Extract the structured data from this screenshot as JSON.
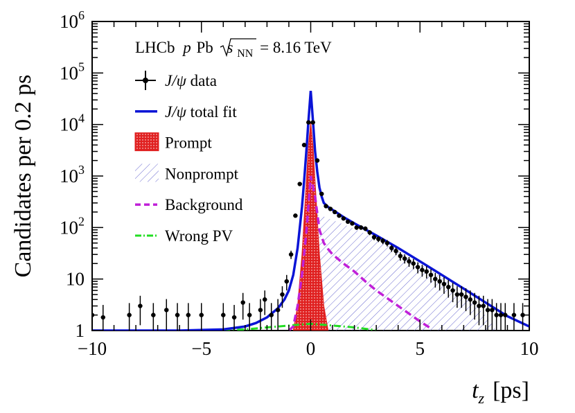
{
  "chart_data": {
    "type": "scatter",
    "title": "LHCb pPb √sNN = 8.16 TeV",
    "header": {
      "experiment": "LHCb",
      "system_a": "p",
      "system_b": "Pb",
      "energy_prefix": "s",
      "energy_subscript": "NN",
      "energy_value": "= 8.16 TeV"
    },
    "xlabel": {
      "symbol": "t",
      "subscript": "z",
      "unit": "[ps]"
    },
    "ylabel": "Candidates per 0.2 ps",
    "xlim": [
      -10,
      10
    ],
    "ylim": [
      1,
      1000000
    ],
    "yscale": "log",
    "x_ticks": [
      {
        "value": -10,
        "label": "−10"
      },
      {
        "value": -5,
        "label": "−5"
      },
      {
        "value": 0,
        "label": "0"
      },
      {
        "value": 5,
        "label": "5"
      },
      {
        "value": 10,
        "label": "10"
      }
    ],
    "y_ticks": [
      {
        "value": 1,
        "base": "1",
        "exp": ""
      },
      {
        "value": 10,
        "base": "10",
        "exp": ""
      },
      {
        "value": 100,
        "base": "10",
        "exp": "2"
      },
      {
        "value": 1000,
        "base": "10",
        "exp": "3"
      },
      {
        "value": 10000,
        "base": "10",
        "exp": "4"
      },
      {
        "value": 100000,
        "base": "10",
        "exp": "5"
      },
      {
        "value": 1000000,
        "base": "10",
        "exp": "6"
      }
    ],
    "legend": [
      {
        "key": "data",
        "prefix": "J/ψ",
        "label": " data",
        "style": "marker"
      },
      {
        "key": "total",
        "prefix": "J/ψ",
        "label": " total fit",
        "style": "line"
      },
      {
        "key": "prompt",
        "prefix": "",
        "label": "Prompt",
        "style": "fill-red"
      },
      {
        "key": "nonprompt",
        "prefix": "",
        "label": "Nonprompt",
        "style": "hatch"
      },
      {
        "key": "background",
        "prefix": "",
        "label": "Background",
        "style": "dash"
      },
      {
        "key": "wrongpv",
        "prefix": "",
        "label": "Wrong PV",
        "style": "dashdot"
      }
    ],
    "colors": {
      "total": "#0a14d6",
      "prompt": "#e02020",
      "nonprompt": "#6a6ad0",
      "background": "#c020d8",
      "wrongpv": "#22dd22",
      "data": "#000000"
    },
    "data": {
      "x": [
        -10,
        -9.5,
        -8.3,
        -7.8,
        -7.2,
        -6.6,
        -6.1,
        -5.6,
        -5.0,
        -4.0,
        -3.5,
        -3.1,
        -2.8,
        -2.3,
        -2.1,
        -1.8,
        -1.5,
        -1.3,
        -1.1,
        -0.9,
        -0.7,
        -0.5,
        -0.3,
        -0.1,
        0.1,
        0.3,
        0.5,
        0.7,
        0.9,
        1.1,
        1.3,
        1.5,
        1.7,
        1.9,
        2.1,
        2.3,
        2.5,
        2.7,
        2.9,
        3.1,
        3.3,
        3.5,
        3.7,
        3.9,
        4.1,
        4.3,
        4.5,
        4.7,
        4.9,
        5.1,
        5.3,
        5.5,
        5.7,
        5.9,
        6.1,
        6.3,
        6.5,
        6.7,
        6.9,
        7.1,
        7.3,
        7.5,
        7.7,
        7.9,
        8.1,
        8.3,
        8.5,
        8.7,
        8.9,
        9.3,
        9.7
      ],
      "y": [
        2,
        1.8,
        2,
        3,
        2,
        2.5,
        2,
        2,
        2,
        2,
        1.8,
        3.5,
        2,
        2.5,
        4,
        2,
        2.5,
        5,
        9,
        30,
        170,
        700,
        4000,
        11000,
        11000,
        2000,
        450,
        260,
        230,
        200,
        170,
        150,
        130,
        120,
        100,
        100,
        95,
        80,
        65,
        60,
        55,
        50,
        40,
        35,
        28,
        25,
        22,
        20,
        17,
        15,
        14,
        12,
        10,
        9,
        8,
        7,
        6,
        5,
        5,
        4.5,
        4,
        3.5,
        3,
        3,
        2.5,
        2.5,
        2,
        2,
        2,
        2,
        2
      ]
    },
    "total_fit": {
      "x": [
        -10,
        -8,
        -6,
        -4,
        -3,
        -2.5,
        -2,
        -1.5,
        -1.2,
        -1,
        -0.8,
        -0.6,
        -0.4,
        -0.3,
        -0.2,
        -0.1,
        0,
        0.1,
        0.2,
        0.3,
        0.4,
        0.5,
        0.6,
        0.8,
        1,
        1.5,
        2,
        3,
        4,
        5,
        6,
        7,
        8,
        9,
        10
      ],
      "y": [
        1,
        1,
        1,
        1.05,
        1.2,
        1.4,
        1.8,
        2.7,
        4,
        6,
        12,
        40,
        250,
        800,
        3000,
        12000,
        45000,
        12000,
        3000,
        1200,
        600,
        400,
        300,
        250,
        220,
        160,
        120,
        70,
        40,
        22,
        12,
        6.5,
        3.5,
        1.9,
        1.2
      ]
    },
    "prompt": {
      "x": [
        -0.8,
        -0.6,
        -0.4,
        -0.3,
        -0.2,
        -0.1,
        0,
        0.1,
        0.2,
        0.3,
        0.4,
        0.6,
        0.8
      ],
      "y": [
        1,
        3,
        30,
        150,
        800,
        4000,
        11000,
        4000,
        800,
        150,
        30,
        3,
        1
      ]
    },
    "nonprompt": {
      "x": [
        0,
        0.1,
        0.3,
        0.5,
        1,
        2,
        3,
        4,
        5,
        6,
        7,
        8,
        8.5
      ],
      "y": [
        1,
        100,
        180,
        170,
        140,
        95,
        60,
        35,
        20,
        11,
        5,
        2,
        1
      ]
    },
    "background": {
      "x": [
        -1,
        -0.8,
        -0.6,
        -0.4,
        -0.2,
        0,
        0.2,
        0.4,
        0.6,
        0.8,
        1,
        1.5,
        2,
        2.5,
        3,
        4,
        5,
        5.5
      ],
      "y": [
        1,
        1.2,
        3,
        12,
        80,
        1000,
        400,
        90,
        50,
        38,
        30,
        20,
        14,
        9,
        6,
        3,
        1.5,
        1.1
      ]
    },
    "wrong_pv": {
      "x": [
        -4,
        -3,
        -2,
        -1,
        -0.5,
        0,
        0.5,
        1,
        2,
        3
      ],
      "y": [
        1.02,
        1.05,
        1.15,
        1.25,
        1.3,
        1.35,
        1.3,
        1.25,
        1.15,
        1.02
      ]
    }
  }
}
